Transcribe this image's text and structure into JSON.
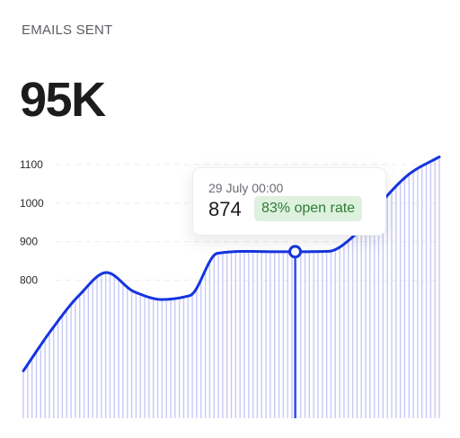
{
  "header": {
    "title": "EMAILS SENT",
    "total": "95K"
  },
  "tooltip": {
    "date": "29 July 00:00",
    "value": "874",
    "badge": "83% open rate"
  },
  "colors": {
    "line": "#1534e0",
    "bars": "#c7c9f6",
    "badge_bg": "#ddf1de",
    "badge_text": "#2e7d32"
  },
  "chart_data": {
    "type": "area",
    "y_ticks": [
      800,
      900,
      1000,
      1100
    ],
    "ylim": [
      550,
      1120
    ],
    "grid": true,
    "x": [
      0,
      2,
      4,
      6,
      8,
      10,
      12,
      14,
      16,
      18,
      20,
      22,
      24,
      26,
      28,
      30
    ],
    "series": [
      {
        "values": [
          565,
          670,
          760,
          820,
          770,
          750,
          760,
          870,
          875,
          874,
          874,
          875,
          920,
          1010,
          1080,
          1120
        ]
      }
    ],
    "highlight": {
      "x": 19.6,
      "y": 874
    }
  }
}
